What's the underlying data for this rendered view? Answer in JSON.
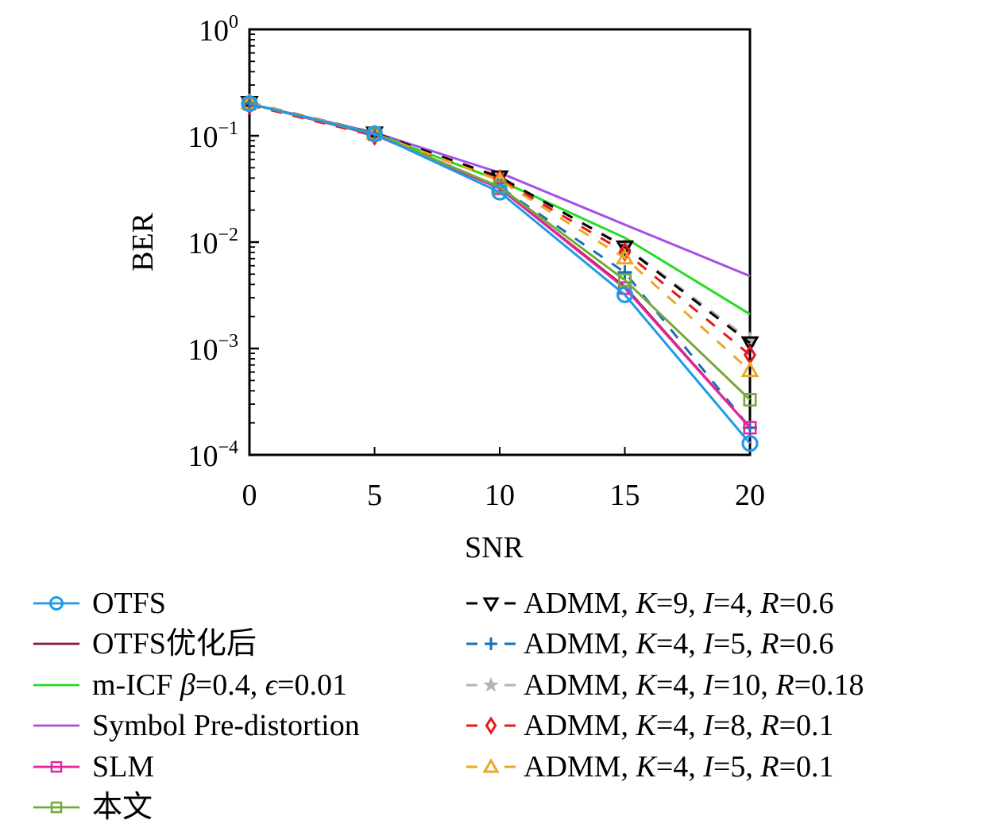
{
  "chart_data": {
    "type": "line",
    "title": "",
    "xlabel": "SNR",
    "ylabel": "BER",
    "x": [
      0,
      5,
      10,
      15,
      20
    ],
    "xlim": [
      0,
      20
    ],
    "ylim": [
      0.0001,
      1
    ],
    "yscale": "log",
    "xticks": [
      "0",
      "5",
      "10",
      "15",
      "20"
    ],
    "yticks": [
      {
        "value": 1,
        "base": "10",
        "exp": "0"
      },
      {
        "value": 0.1,
        "base": "10",
        "exp": "−1"
      },
      {
        "value": 0.01,
        "base": "10",
        "exp": "−2"
      },
      {
        "value": 0.001,
        "base": "10",
        "exp": "−3"
      },
      {
        "value": 0.0001,
        "base": "10",
        "exp": "−4"
      }
    ],
    "grid": false,
    "legend_position": "below-two-columns",
    "series": [
      {
        "name": "OTFS",
        "color": "#1e9be8",
        "dash": "solid",
        "marker": "circle",
        "values": [
          0.2,
          0.104,
          0.0295,
          0.0032,
          0.000128
        ]
      },
      {
        "name": "OTFS优化后",
        "color": "#8b1a32",
        "dash": "solid",
        "marker": "none",
        "values": [
          0.2,
          0.102,
          0.032,
          0.0038,
          0.00018
        ]
      },
      {
        "name": "m-ICF β=0.4, ϵ=0.01",
        "color": "#22dd22",
        "dash": "solid",
        "marker": "none",
        "values": [
          0.2,
          0.105,
          0.038,
          0.011,
          0.0021
        ]
      },
      {
        "name": "Symbol Pre-distortion",
        "color": "#a64ee8",
        "dash": "solid",
        "marker": "none",
        "values": [
          0.2,
          0.107,
          0.045,
          0.0146,
          0.0048
        ]
      },
      {
        "name": "SLM",
        "color": "#e8239e",
        "dash": "solid",
        "marker": "square",
        "values": [
          0.2,
          0.103,
          0.032,
          0.0037,
          0.00018
        ]
      },
      {
        "name": "本文",
        "color": "#76a83a",
        "dash": "solid",
        "marker": "square",
        "values": [
          0.2,
          0.104,
          0.033,
          0.0044,
          0.00033
        ]
      },
      {
        "name": "ADMM, K=9, I=4, R=0.6",
        "color": "#000000",
        "dash": "dashed",
        "marker": "triangle-down",
        "values": [
          0.205,
          0.106,
          0.041,
          0.009,
          0.00113
        ]
      },
      {
        "name": "ADMM, K=4, I=5, R=0.6",
        "color": "#1a6fb5",
        "dash": "dashed",
        "marker": "plus",
        "values": [
          0.2,
          0.104,
          0.033,
          0.0052,
          0.00018
        ]
      },
      {
        "name": "ADMM, K=4, I=10, R=0.18",
        "color": "#b4b4b4",
        "dash": "dashed",
        "marker": "star",
        "values": [
          0.205,
          0.106,
          0.04,
          0.0092,
          0.0012
        ]
      },
      {
        "name": "ADMM, K=4, I=8, R=0.1",
        "color": "#e81818",
        "dash": "dashed",
        "marker": "diamond",
        "values": [
          0.195,
          0.1,
          0.039,
          0.0081,
          0.00087
        ]
      },
      {
        "name": "ADMM, K=4, I=5, R=0.1",
        "color": "#e8a828",
        "dash": "dashed",
        "marker": "triangle-up",
        "values": [
          0.205,
          0.105,
          0.038,
          0.0071,
          0.00062
        ]
      }
    ]
  },
  "legend": {
    "left": [
      {
        "series": 0,
        "parts": [
          {
            "t": "OTFS"
          }
        ]
      },
      {
        "series": 1,
        "parts": [
          {
            "t": "OTFS优化后"
          }
        ]
      },
      {
        "series": 2,
        "parts": [
          {
            "t": "m-ICF "
          },
          {
            "t": "β",
            "i": true
          },
          {
            "t": "=0.4, "
          },
          {
            "t": "ϵ",
            "i": true
          },
          {
            "t": "=0.01"
          }
        ]
      },
      {
        "series": 3,
        "parts": [
          {
            "t": "Symbol Pre-distortion"
          }
        ]
      },
      {
        "series": 4,
        "parts": [
          {
            "t": "SLM"
          }
        ]
      },
      {
        "series": 5,
        "parts": [
          {
            "t": "本文"
          }
        ]
      }
    ],
    "right": [
      {
        "series": 6,
        "parts": [
          {
            "t": "ADMM, "
          },
          {
            "t": "K",
            "i": true
          },
          {
            "t": "=9, "
          },
          {
            "t": "I",
            "i": true
          },
          {
            "t": "=4, "
          },
          {
            "t": "R",
            "i": true
          },
          {
            "t": "=0.6"
          }
        ]
      },
      {
        "series": 7,
        "parts": [
          {
            "t": "ADMM, "
          },
          {
            "t": "K",
            "i": true
          },
          {
            "t": "=4, "
          },
          {
            "t": "I",
            "i": true
          },
          {
            "t": "=5, "
          },
          {
            "t": "R",
            "i": true
          },
          {
            "t": "=0.6"
          }
        ]
      },
      {
        "series": 8,
        "parts": [
          {
            "t": "ADMM, "
          },
          {
            "t": "K",
            "i": true
          },
          {
            "t": "=4, "
          },
          {
            "t": "I",
            "i": true
          },
          {
            "t": "=10, "
          },
          {
            "t": "R",
            "i": true
          },
          {
            "t": "=0.18"
          }
        ]
      },
      {
        "series": 9,
        "parts": [
          {
            "t": "ADMM, "
          },
          {
            "t": "K",
            "i": true
          },
          {
            "t": "=4, "
          },
          {
            "t": "I",
            "i": true
          },
          {
            "t": "=8, "
          },
          {
            "t": "R",
            "i": true
          },
          {
            "t": "=0.1"
          }
        ]
      },
      {
        "series": 10,
        "parts": [
          {
            "t": "ADMM, "
          },
          {
            "t": "K",
            "i": true
          },
          {
            "t": "=4, "
          },
          {
            "t": "I",
            "i": true
          },
          {
            "t": "=5, "
          },
          {
            "t": "R",
            "i": true
          },
          {
            "t": "=0.1"
          }
        ]
      }
    ]
  }
}
